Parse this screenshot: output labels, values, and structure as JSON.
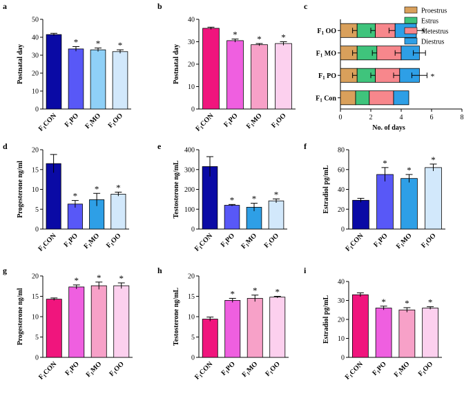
{
  "chart_data": [
    {
      "panel": "a",
      "type": "bar",
      "ylabel": "Postnatal day",
      "ylim": [
        0,
        50
      ],
      "yticks": [
        0,
        10,
        20,
        30,
        40,
        50
      ],
      "categories": [
        "F1CON",
        "F1PO",
        "F1MO",
        "F1OO"
      ],
      "values": [
        41.5,
        33.5,
        33.0,
        32.0
      ],
      "errors": [
        0.7,
        1.3,
        1.0,
        1.0
      ],
      "significant": [
        false,
        true,
        true,
        true
      ],
      "colors": [
        "#0a0aa5",
        "#5858f7",
        "#8fd0f7",
        "#d2e8fb"
      ]
    },
    {
      "panel": "b",
      "type": "bar",
      "ylabel": "Postnatal day",
      "ylim": [
        0,
        40
      ],
      "yticks": [
        0,
        10,
        20,
        30,
        40
      ],
      "categories": [
        "F1CON",
        "F1PO",
        "F1MO",
        "F1OO"
      ],
      "values": [
        36.0,
        30.5,
        28.7,
        29.2
      ],
      "errors": [
        0.5,
        0.7,
        0.5,
        0.8
      ],
      "significant": [
        false,
        true,
        true,
        true
      ],
      "colors": [
        "#f0157d",
        "#ef5fe0",
        "#f7a1c8",
        "#fcd0ee"
      ]
    },
    {
      "panel": "c",
      "type": "bar",
      "orientation": "horizontal",
      "stacked": true,
      "xlabel": "No. of days",
      "xlim": [
        0,
        8
      ],
      "xticks": [
        0,
        2,
        4,
        6,
        8
      ],
      "categories": [
        "F1 OO",
        "F1 MO",
        "F1 PO",
        "F1 Con"
      ],
      "series": [
        {
          "name": "Proestrus",
          "color": "#d9a05b",
          "values": [
            1.1,
            1.1,
            1.1,
            1.0
          ],
          "errors": [
            0.3,
            0.3,
            0.3,
            0
          ]
        },
        {
          "name": "Estrus",
          "color": "#3fc47c",
          "values": [
            1.2,
            1.3,
            1.2,
            0.9
          ],
          "errors": [
            0.3,
            0.3,
            0.3,
            0
          ]
        },
        {
          "name": "Metestrus",
          "color": "#f7878c",
          "values": [
            1.3,
            1.6,
            1.6,
            1.6
          ],
          "errors": [
            0.4,
            0.4,
            0.4,
            0
          ]
        },
        {
          "name": "Diestrus",
          "color": "#2e9fe6",
          "values": [
            1.4,
            1.2,
            1.3,
            1.0
          ],
          "errors": [
            0.5,
            0.4,
            0.5,
            0
          ]
        }
      ],
      "annotations": [
        {
          "category": "F1 PO",
          "text": "*"
        }
      ]
    },
    {
      "panel": "d",
      "type": "bar",
      "ylabel": "Progesterone ng/ml",
      "ylim": [
        0,
        20
      ],
      "yticks": [
        0,
        5,
        10,
        15,
        20
      ],
      "categories": [
        "F1CON",
        "F1PO",
        "F1MO",
        "F1OO"
      ],
      "values": [
        16.5,
        6.3,
        7.4,
        8.8
      ],
      "errors": [
        2.3,
        0.9,
        1.6,
        0.5
      ],
      "significant": [
        false,
        true,
        true,
        true
      ],
      "colors": [
        "#0a0aa5",
        "#5858f7",
        "#2e9fe6",
        "#d2e8fb"
      ]
    },
    {
      "panel": "e",
      "type": "bar",
      "ylabel": "Testosterone ng/mL",
      "ylim": [
        0,
        400
      ],
      "yticks": [
        0,
        100,
        200,
        300,
        400
      ],
      "categories": [
        "F1CON",
        "F1PO",
        "F1MO",
        "F1OO"
      ],
      "values": [
        315,
        120,
        110,
        142
      ],
      "errors": [
        50,
        4,
        20,
        10
      ],
      "significant": [
        false,
        true,
        true,
        true
      ],
      "colors": [
        "#0a0aa5",
        "#5858f7",
        "#2e9fe6",
        "#d2e8fb"
      ]
    },
    {
      "panel": "f",
      "type": "bar",
      "ylabel": "Estradiol pg/mL",
      "ylim": [
        0,
        80
      ],
      "yticks": [
        0,
        20,
        40,
        60,
        80
      ],
      "categories": [
        "F1CON",
        "F1PO",
        "F1MO",
        "F1OO"
      ],
      "values": [
        29,
        55,
        51,
        62
      ],
      "errors": [
        2,
        7,
        4,
        3.5
      ],
      "significant": [
        false,
        true,
        true,
        true
      ],
      "colors": [
        "#0a0aa5",
        "#5858f7",
        "#2e9fe6",
        "#d2e8fb"
      ]
    },
    {
      "panel": "g",
      "type": "bar",
      "ylabel": "Progesterone ng/ml",
      "ylim": [
        0,
        20
      ],
      "yticks": [
        0,
        5,
        10,
        15,
        20
      ],
      "categories": [
        "F1CON",
        "F1PO",
        "F1MO",
        "F1OO"
      ],
      "values": [
        14.3,
        17.3,
        17.6,
        17.6
      ],
      "errors": [
        0.3,
        0.5,
        0.9,
        0.7
      ],
      "significant": [
        false,
        true,
        true,
        true
      ],
      "colors": [
        "#f0157d",
        "#ef5fe0",
        "#f7a1c8",
        "#fcd0ee"
      ]
    },
    {
      "panel": "h",
      "type": "bar",
      "ylabel": "Testosterone ng/mL",
      "ylim": [
        0,
        20
      ],
      "yticks": [
        0,
        5,
        10,
        15,
        20
      ],
      "categories": [
        "F1CON",
        "F1PO",
        "F1MO",
        "F1OO"
      ],
      "values": [
        9.4,
        14.0,
        14.5,
        14.8
      ],
      "errors": [
        0.5,
        0.5,
        0.8,
        0.2
      ],
      "significant": [
        false,
        true,
        true,
        true
      ],
      "colors": [
        "#f0157d",
        "#ef5fe0",
        "#f7a1c8",
        "#fcd0ee"
      ]
    },
    {
      "panel": "i",
      "type": "bar",
      "ylabel": "Estradiol pg/mL",
      "ylim": [
        0,
        40
      ],
      "yticks": [
        0,
        10,
        20,
        30,
        40
      ],
      "categories": [
        "F1CON",
        "F1PO",
        "F1MO",
        "F1OO"
      ],
      "values": [
        33.0,
        26.0,
        25.0,
        26.0
      ],
      "errors": [
        1.0,
        1.0,
        1.2,
        0.7
      ],
      "significant": [
        false,
        true,
        true,
        true
      ],
      "colors": [
        "#f0157d",
        "#ef5fe0",
        "#f7a1c8",
        "#fcd0ee"
      ]
    }
  ]
}
